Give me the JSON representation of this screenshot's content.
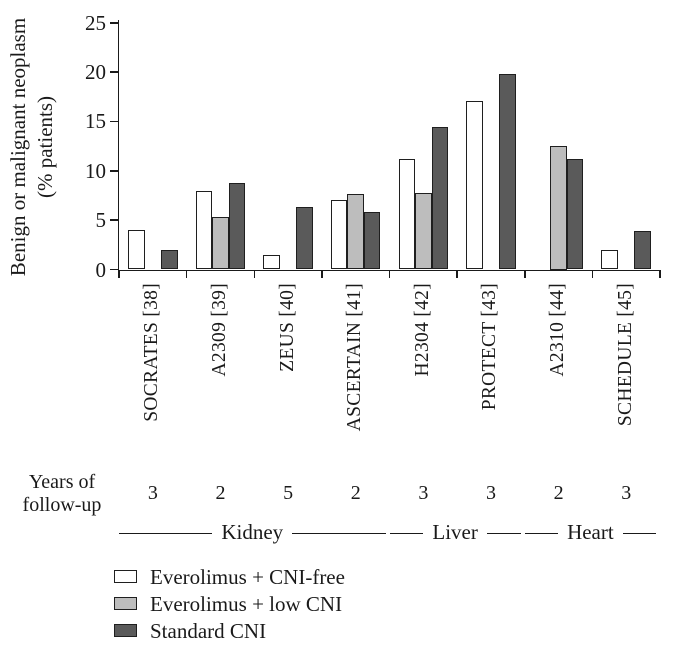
{
  "chart_data": {
    "type": "bar",
    "title": "",
    "ylabel_line1": "Benign or malignant neoplasm",
    "ylabel_line2": "(% patients)",
    "ylim": [
      0,
      25
    ],
    "yticks": [
      0,
      5,
      10,
      15,
      20,
      25
    ],
    "grid": false,
    "legend_position": "bottom-left",
    "categories": [
      "SOCRATES [38]",
      "A2309 [39]",
      "ZEUS [40]",
      "ASCERTAIN [41]",
      "H2304 [42]",
      "PROTECT [43]",
      "A2310 [44]",
      "SCHEDULE [45]"
    ],
    "series": [
      {
        "name": "Everolimus + CNI-free",
        "color": "#ffffff",
        "values": [
          4.0,
          8.0,
          1.5,
          7.0,
          11.2,
          17.1,
          null,
          2.0
        ]
      },
      {
        "name": "Everolimus + low CNI",
        "color": "#bdbdbd",
        "values": [
          null,
          5.3,
          null,
          7.6,
          7.8,
          null,
          12.5,
          null
        ]
      },
      {
        "name": "Standard CNI",
        "color": "#5a5a5a",
        "values": [
          2.0,
          8.8,
          6.3,
          5.8,
          14.4,
          19.8,
          11.2,
          3.9
        ]
      }
    ],
    "followup": {
      "label_line1": "Years of",
      "label_line2": "follow-up",
      "values": [
        "3",
        "2",
        "5",
        "2",
        "3",
        "3",
        "2",
        "3"
      ]
    },
    "organ_groups": [
      {
        "label": "Kidney",
        "start": 0,
        "end": 3
      },
      {
        "label": "Liver",
        "start": 4,
        "end": 5
      },
      {
        "label": "Heart",
        "start": 6,
        "end": 7
      }
    ],
    "colors": {
      "axis": "#1a1a1a",
      "bar_outline": "#1f1f1f"
    }
  }
}
